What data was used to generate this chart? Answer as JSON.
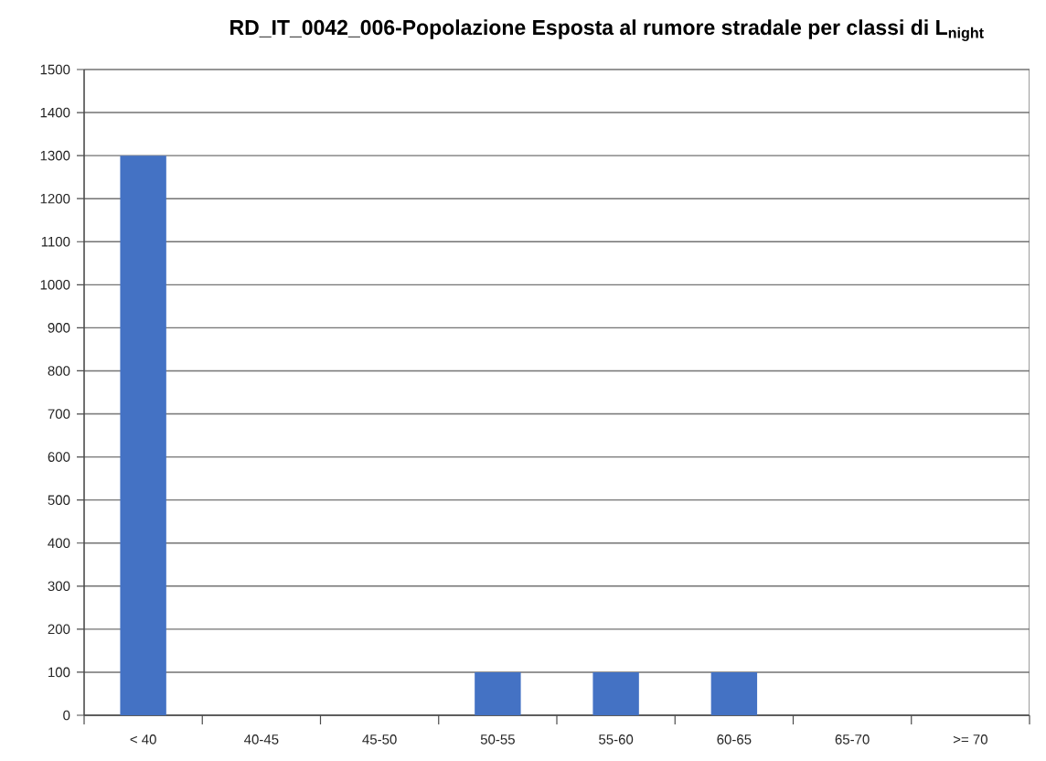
{
  "chart_data": {
    "type": "bar",
    "title": "RD_IT_0042_006-Popolazione Esposta al rumore stradale per classi di L$_{night}$",
    "categories": [
      "< 40",
      "40-45",
      "45-50",
      "50-55",
      "55-60",
      "60-65",
      "65-70",
      ">= 70"
    ],
    "values": [
      1300,
      0,
      0,
      100,
      100,
      100,
      0,
      0
    ],
    "color": "#4472c4",
    "ylim": [
      0,
      1500
    ],
    "yticks": [
      0,
      100,
      200,
      300,
      400,
      500,
      600,
      700,
      800,
      900,
      1000,
      1100,
      1200,
      1300,
      1400,
      1500
    ],
    "grid": "y"
  }
}
